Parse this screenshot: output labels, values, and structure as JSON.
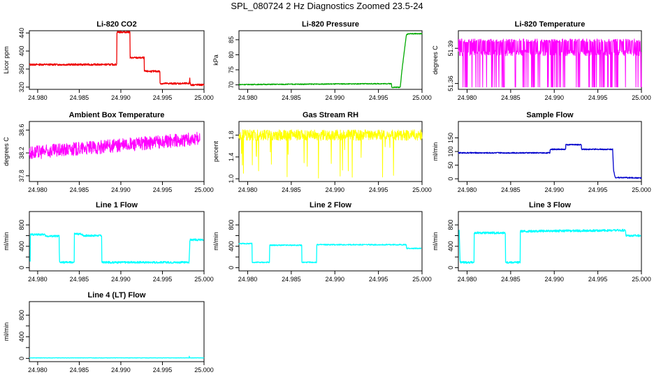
{
  "page_title": "SPL_080724  2 Hz Diagnostics Zoomed 23.5-24",
  "chart_data": [
    {
      "type": "line",
      "title": "Li-820 CO2",
      "ylabel": "Licor ppm",
      "color": "#ee0000",
      "xlim": [
        24.979,
        25.0
      ],
      "ylim": [
        315,
        445
      ],
      "xticks": [
        24.98,
        24.985,
        24.99,
        24.995,
        25.0
      ],
      "xtick_labels": [
        "24.980",
        "24.985",
        "24.990",
        "24.995",
        "25.000"
      ],
      "yticks": [
        320,
        360,
        400,
        440
      ],
      "ytick_labels": [
        "320",
        "360",
        "400",
        "440"
      ],
      "x": [
        24.979,
        24.9895,
        24.98951,
        24.9911,
        24.99111,
        24.9928,
        24.99281,
        24.9947,
        24.99471,
        24.9982,
        24.9983,
        24.99831,
        24.9984,
        24.99841,
        25.0
      ],
      "y": [
        370,
        370,
        442,
        442,
        385,
        385,
        355,
        355,
        328,
        328,
        340,
        328,
        327,
        325,
        325
      ],
      "noise": 2
    },
    {
      "type": "line",
      "title": "Li-820 Pressure",
      "ylabel": "kPa",
      "color": "#00aa00",
      "xlim": [
        24.979,
        25.0
      ],
      "ylim": [
        68.5,
        88
      ],
      "xticks": [
        24.98,
        24.985,
        24.99,
        24.995,
        25.0
      ],
      "xtick_labels": [
        "24.980",
        "24.985",
        "24.990",
        "24.995",
        "25.000"
      ],
      "yticks": [
        70,
        75,
        80,
        85
      ],
      "ytick_labels": [
        "70",
        "75",
        "80",
        "85"
      ],
      "x": [
        24.979,
        24.9965,
        24.99651,
        24.9975,
        24.9977,
        24.9982,
        24.9984,
        25.0
      ],
      "y": [
        70.1,
        70.4,
        69.2,
        69.2,
        75,
        86.5,
        87,
        87
      ],
      "noise": 0.15
    },
    {
      "type": "line",
      "title": "Li-820 Temperature",
      "ylabel": "degrees C",
      "color": "#ff00ff",
      "xlim": [
        24.979,
        25.0
      ],
      "ylim": [
        51.355,
        51.405
      ],
      "xticks": [
        24.98,
        24.985,
        24.99,
        24.995,
        25.0
      ],
      "xtick_labels": [
        "24.980",
        "24.985",
        "24.990",
        "24.995",
        "25.000"
      ],
      "yticks": [
        51.36,
        51.39
      ],
      "ytick_labels": [
        "51.36",
        "51.39"
      ],
      "x": [
        24.979,
        25.0
      ],
      "y": [
        51.39,
        51.39
      ],
      "noise": 0.008
    },
    {
      "type": "line",
      "title": "Ambient Box Temperature",
      "ylabel": "degrees C",
      "color": "#ff00ff",
      "xlim": [
        24.979,
        25.0
      ],
      "ylim": [
        37.7,
        38.75
      ],
      "xticks": [
        24.98,
        24.985,
        24.99,
        24.995,
        25.0
      ],
      "xtick_labels": [
        "24.980",
        "24.985",
        "24.990",
        "24.995",
        "25.000"
      ],
      "yticks": [
        37.8,
        38.2,
        38.6
      ],
      "ytick_labels": [
        "37.8",
        "38.2",
        "38.6"
      ],
      "x": [
        24.979,
        24.9995
      ],
      "y": [
        38.2,
        38.45
      ],
      "noise": 0.12
    },
    {
      "type": "line",
      "title": "Gas Stream RH",
      "ylabel": "percent",
      "color": "#ffff00",
      "xlim": [
        24.979,
        25.0
      ],
      "ylim": [
        0.95,
        2.05
      ],
      "xticks": [
        24.98,
        24.985,
        24.99,
        24.995,
        25.0
      ],
      "xtick_labels": [
        "24.980",
        "24.985",
        "24.990",
        "24.995",
        "25.000"
      ],
      "yticks": [
        1.0,
        1.4,
        1.8
      ],
      "ytick_labels": [
        "1.0",
        "1.4",
        "1.8"
      ],
      "x": [
        24.979,
        25.0
      ],
      "y": [
        1.8,
        1.8
      ],
      "noise": 0.1
    },
    {
      "type": "line",
      "title": "Sample Flow",
      "ylabel": "ml/min",
      "color": "#0000cc",
      "xlim": [
        24.979,
        25.0
      ],
      "ylim": [
        -10,
        210
      ],
      "xticks": [
        24.98,
        24.985,
        24.99,
        24.995,
        25.0
      ],
      "xtick_labels": [
        "24.980",
        "24.985",
        "24.990",
        "24.995",
        "25.000"
      ],
      "yticks": [
        0,
        50,
        100,
        150
      ],
      "ytick_labels": [
        "0",
        "50",
        "100",
        "150"
      ],
      "x": [
        24.979,
        24.9895,
        24.98951,
        24.9913,
        24.99131,
        24.9931,
        24.99311,
        24.9967,
        24.9968,
        24.997,
        25.0
      ],
      "y": [
        95,
        95,
        108,
        108,
        125,
        125,
        108,
        108,
        30,
        5,
        3
      ],
      "noise": 2
    },
    {
      "type": "line",
      "title": "Line 1 Flow",
      "ylabel": "ml/min",
      "color": "#00ffff",
      "xlim": [
        24.979,
        25.0
      ],
      "ylim": [
        -60,
        1050
      ],
      "xticks": [
        24.98,
        24.985,
        24.99,
        24.995,
        25.0
      ],
      "xtick_labels": [
        "24.980",
        "24.985",
        "24.990",
        "24.995",
        "25.000"
      ],
      "yticks": [
        0,
        200,
        400,
        600,
        800
      ],
      "ytick_labels": [
        "0",
        "400",
        "800"
      ],
      "x": [
        24.9791,
        24.97911,
        24.9808,
        24.981,
        24.9826,
        24.98261,
        24.9844,
        24.98441,
        24.9853,
        24.9855,
        24.9877,
        24.98771,
        24.9982,
        24.9983,
        24.9999
      ],
      "y": [
        100,
        620,
        620,
        590,
        590,
        100,
        100,
        630,
        630,
        600,
        600,
        100,
        100,
        520,
        520
      ],
      "noise": 18
    },
    {
      "type": "line",
      "title": "Line 2 Flow",
      "ylabel": "ml/min",
      "color": "#00ffff",
      "xlim": [
        24.979,
        25.0
      ],
      "ylim": [
        -60,
        1050
      ],
      "xticks": [
        24.98,
        24.985,
        24.99,
        24.995,
        25.0
      ],
      "xtick_labels": [
        "24.980",
        "24.985",
        "24.990",
        "24.995",
        "25.000"
      ],
      "yticks": [
        0,
        200,
        400,
        600,
        800
      ],
      "ytick_labels": [
        "0",
        "400",
        "800"
      ],
      "x": [
        24.979,
        24.9805,
        24.98051,
        24.9825,
        24.98251,
        24.9862,
        24.98621,
        24.9879,
        24.98791,
        24.9982,
        24.99821,
        24.9999
      ],
      "y": [
        450,
        450,
        100,
        100,
        420,
        420,
        100,
        100,
        430,
        430,
        360,
        360
      ],
      "noise": 10
    },
    {
      "type": "line",
      "title": "Line 3 Flow",
      "ylabel": "ml/min",
      "color": "#00ffff",
      "xlim": [
        24.979,
        25.0
      ],
      "ylim": [
        -60,
        1050
      ],
      "xticks": [
        24.98,
        24.985,
        24.99,
        24.995,
        25.0
      ],
      "xtick_labels": [
        "24.980",
        "24.985",
        "24.990",
        "24.995",
        "25.000"
      ],
      "yticks": [
        0,
        200,
        400,
        600,
        800
      ],
      "ytick_labels": [
        "0",
        "400",
        "800"
      ],
      "x": [
        24.9791,
        24.9792,
        24.9808,
        24.98081,
        24.9844,
        24.98441,
        24.9861,
        24.98611,
        24.9982,
        24.99821,
        24.9999
      ],
      "y": [
        700,
        100,
        100,
        650,
        650,
        100,
        100,
        680,
        700,
        600,
        600
      ],
      "noise": 20
    },
    {
      "type": "line",
      "title": "Line 4 (LT) Flow",
      "ylabel": "ml/min",
      "color": "#00ffff",
      "xlim": [
        24.979,
        25.0
      ],
      "ylim": [
        -60,
        1050
      ],
      "xticks": [
        24.98,
        24.985,
        24.99,
        24.995,
        25.0
      ],
      "xtick_labels": [
        "24.980",
        "24.985",
        "24.990",
        "24.995",
        "25.000"
      ],
      "yticks": [
        0,
        200,
        400,
        600,
        800
      ],
      "ytick_labels": [
        "0",
        "400",
        "800"
      ],
      "x": [
        24.979,
        24.9982,
        24.99821,
        24.99825,
        24.9983,
        25.0
      ],
      "y": [
        10,
        10,
        70,
        10,
        10,
        10
      ],
      "noise": 3
    }
  ]
}
